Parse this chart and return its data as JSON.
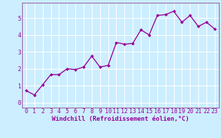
{
  "x": [
    0,
    1,
    2,
    3,
    4,
    5,
    6,
    7,
    8,
    9,
    10,
    11,
    12,
    13,
    14,
    15,
    16,
    17,
    18,
    19,
    20,
    21,
    22,
    23
  ],
  "y": [
    0.7,
    0.45,
    1.05,
    1.65,
    1.65,
    2.0,
    1.95,
    2.1,
    2.75,
    2.1,
    2.2,
    3.55,
    3.45,
    3.5,
    4.3,
    4.0,
    5.15,
    5.2,
    5.4,
    4.75,
    5.15,
    4.5,
    4.75,
    4.35
  ],
  "line_color": "#990099",
  "marker": "D",
  "marker_size": 2,
  "line_width": 1.0,
  "bg_color": "#cceeff",
  "grid_color": "#ffffff",
  "xlabel": "Windchill (Refroidissement éolien,°C)",
  "xlim": [
    -0.5,
    23.5
  ],
  "ylim": [
    -0.3,
    5.9
  ],
  "yticks": [
    0,
    1,
    2,
    3,
    4,
    5
  ],
  "xticks": [
    0,
    1,
    2,
    3,
    4,
    5,
    6,
    7,
    8,
    9,
    10,
    11,
    12,
    13,
    14,
    15,
    16,
    17,
    18,
    19,
    20,
    21,
    22,
    23
  ],
  "xlabel_fontsize": 6.5,
  "tick_fontsize": 6,
  "tick_color": "#990099",
  "axis_label_color": "#990099",
  "spine_color": "#9966aa"
}
